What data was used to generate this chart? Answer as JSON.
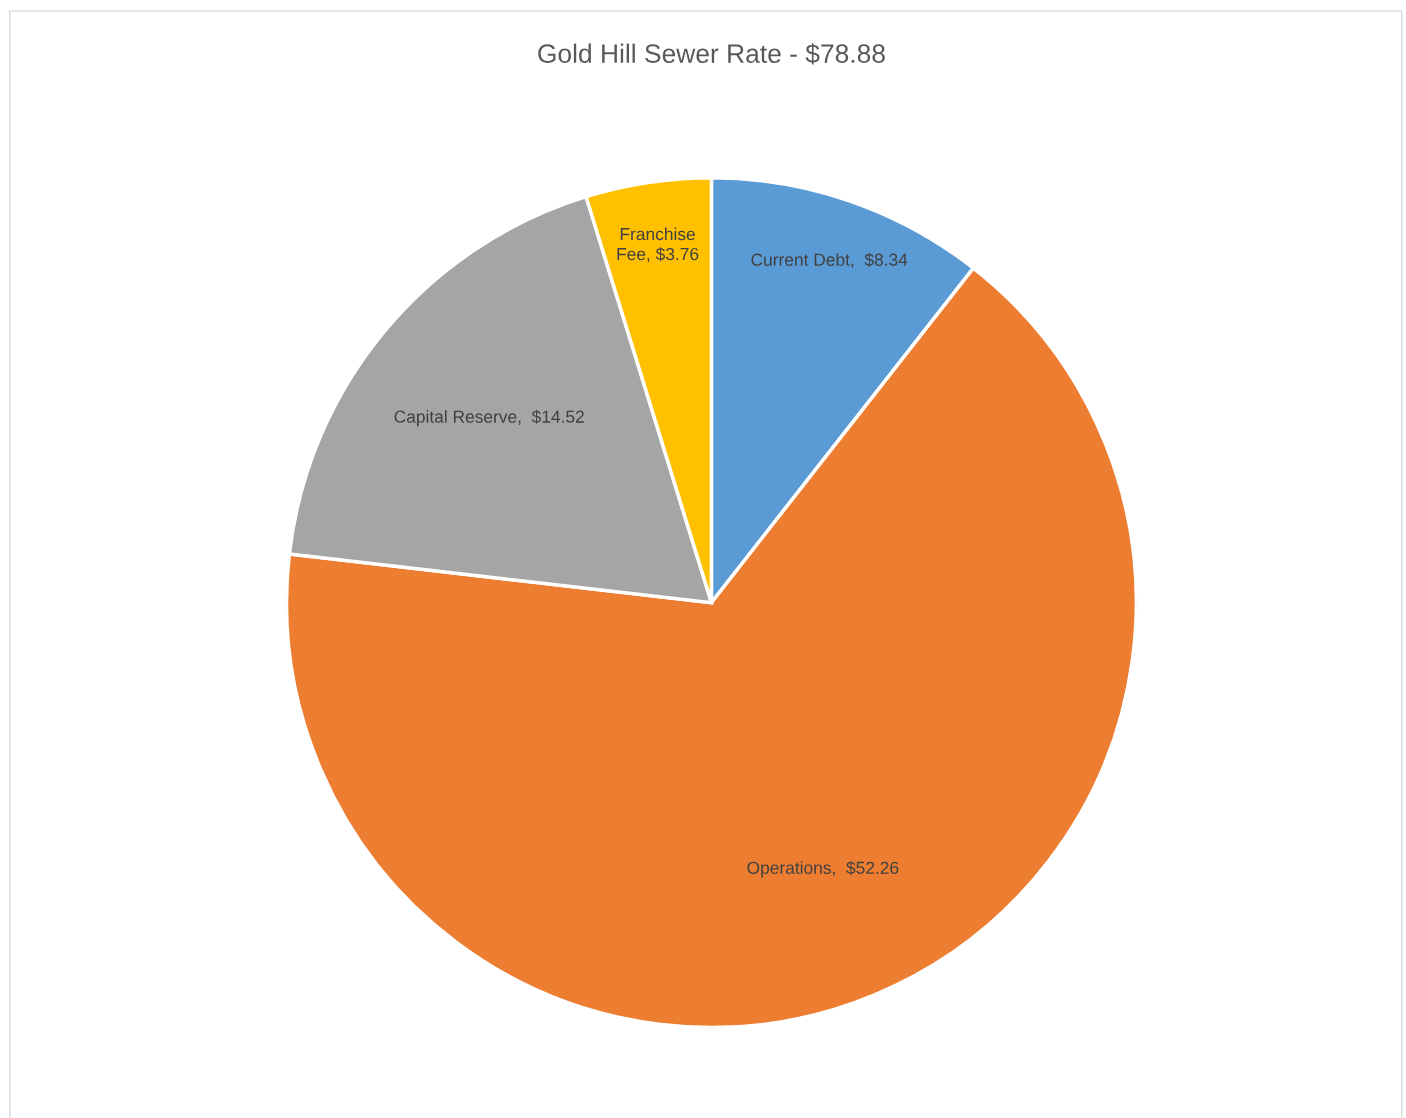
{
  "chart_data": {
    "type": "pie",
    "title": "Gold Hill Sewer Rate - $78.88",
    "categories": [
      "Current Debt",
      "Operations",
      "Capital Reserve",
      "Franchise Fee"
    ],
    "values": [
      8.34,
      52.26,
      14.52,
      3.76
    ],
    "colors": [
      "#5b9bd5",
      "#ed7d31",
      "#a5a5a5",
      "#ffc000"
    ],
    "value_labels": [
      "$8.34",
      "$52.26",
      "$14.52",
      "$3.76"
    ],
    "legend": false
  }
}
